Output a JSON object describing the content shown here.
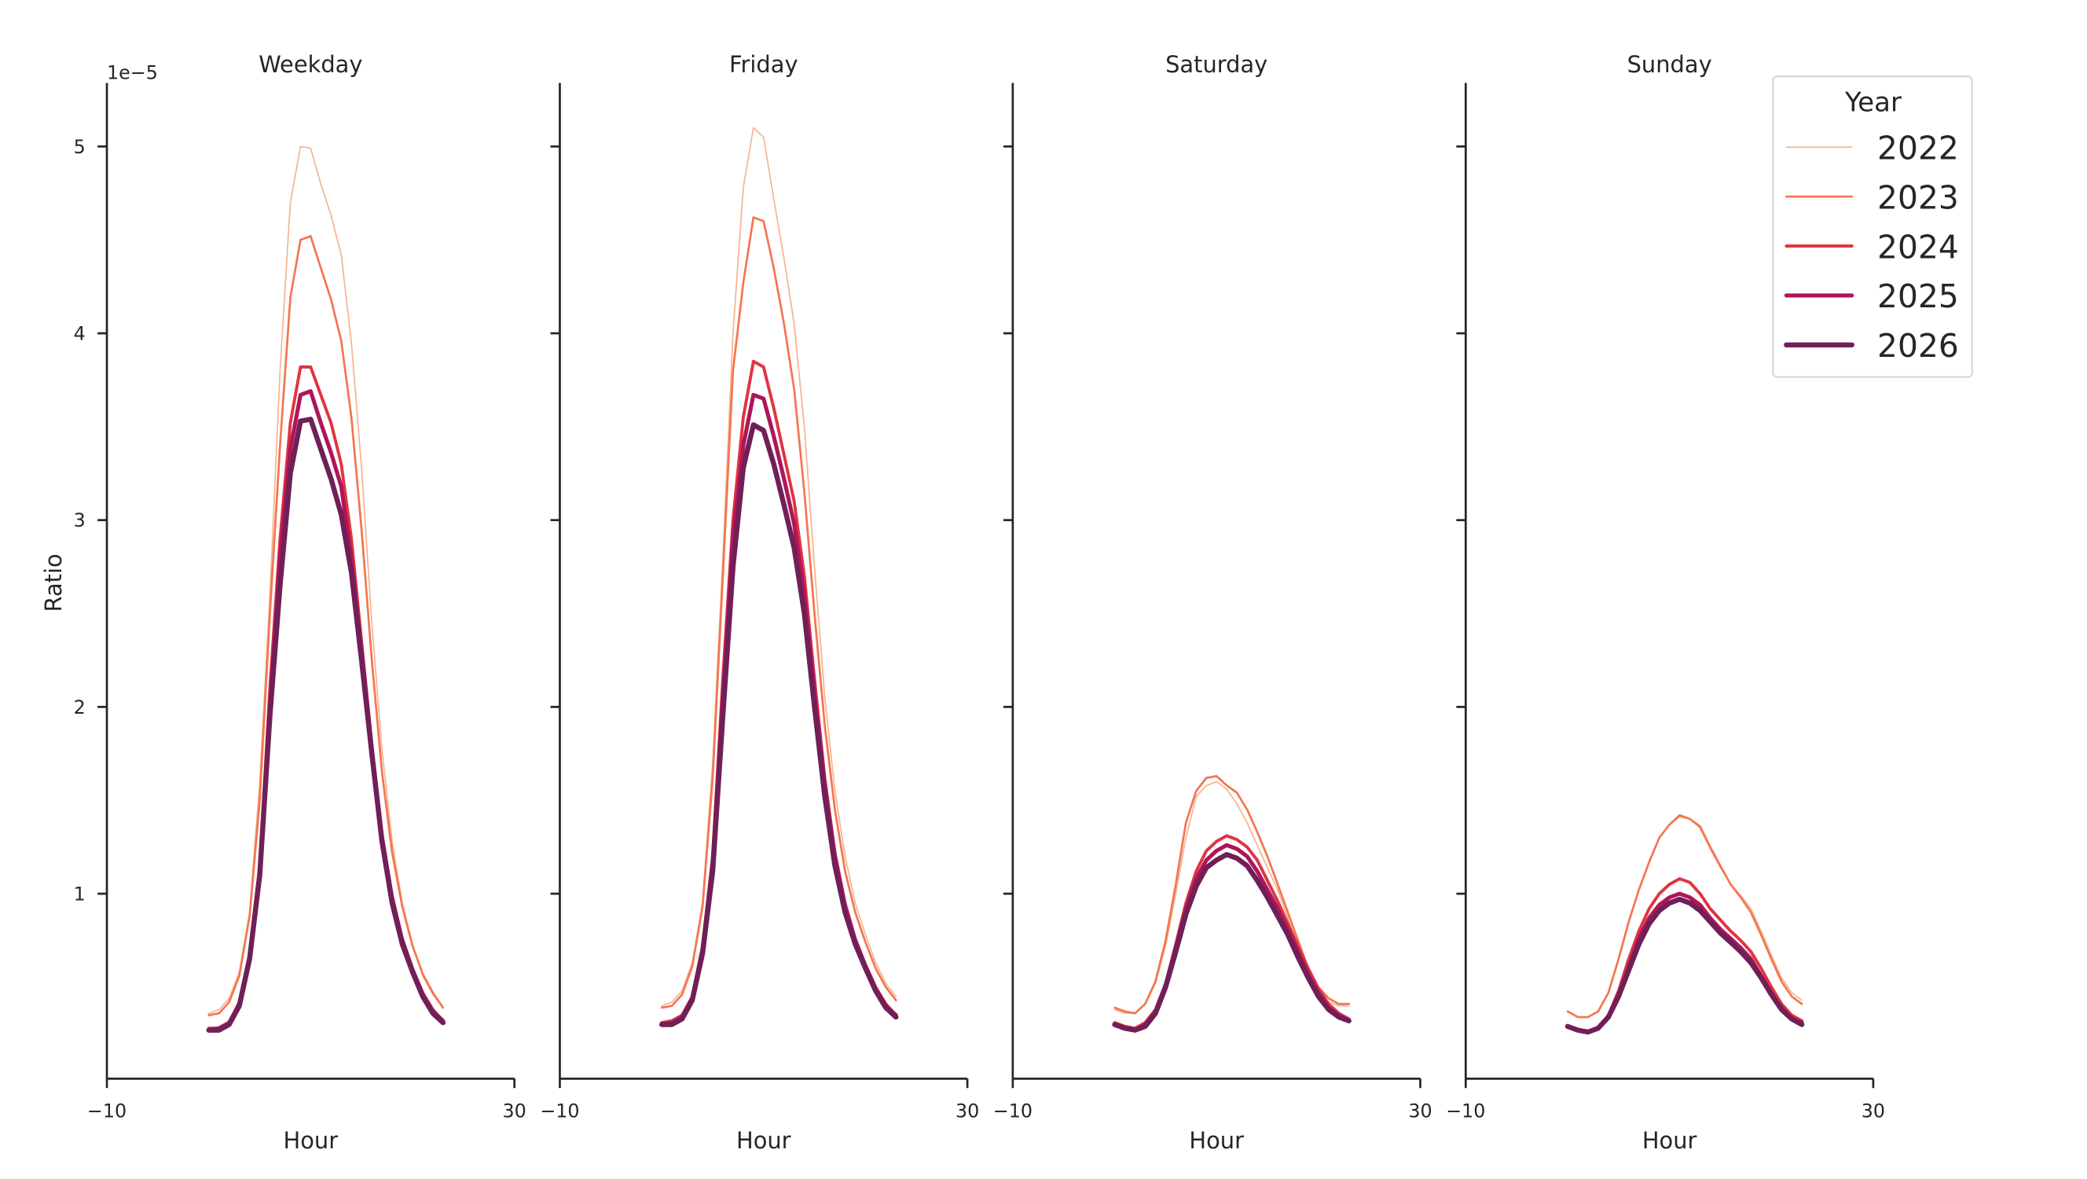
{
  "chart_data": [
    {
      "type": "line",
      "title": "Weekday",
      "xlabel": "Hour",
      "ylabel": "Ratio",
      "y_offset_text": "1e−5",
      "xlim": [
        -10,
        30
      ],
      "ylim": [
        0.01,
        5.34
      ],
      "x_ticks": [
        "−10",
        "30"
      ],
      "y_ticks": [
        "1",
        "2",
        "3",
        "4",
        "5"
      ],
      "x": [
        0,
        1,
        2,
        3,
        4,
        5,
        6,
        7,
        8,
        9,
        10,
        11,
        12,
        13,
        14,
        15,
        16,
        17,
        18,
        19,
        20,
        21,
        22,
        23
      ],
      "series": [
        {
          "name": "2022",
          "values": [
            0.36,
            0.38,
            0.44,
            0.58,
            0.9,
            1.6,
            2.6,
            3.8,
            4.7,
            5.0,
            4.99,
            4.8,
            4.63,
            4.42,
            3.95,
            3.28,
            2.45,
            1.77,
            1.28,
            0.95,
            0.73,
            0.56,
            0.46,
            0.39
          ]
        },
        {
          "name": "2023",
          "values": [
            0.35,
            0.36,
            0.42,
            0.56,
            0.88,
            1.5,
            2.5,
            3.4,
            4.19,
            4.5,
            4.52,
            4.35,
            4.18,
            3.96,
            3.55,
            2.95,
            2.25,
            1.65,
            1.22,
            0.93,
            0.72,
            0.57,
            0.47,
            0.39
          ]
        },
        {
          "name": "2024",
          "values": [
            0.28,
            0.28,
            0.31,
            0.42,
            0.68,
            1.15,
            2.1,
            2.9,
            3.52,
            3.82,
            3.82,
            3.67,
            3.52,
            3.3,
            2.9,
            2.35,
            1.8,
            1.32,
            0.99,
            0.76,
            0.6,
            0.47,
            0.38,
            0.32
          ]
        },
        {
          "name": "2025",
          "values": [
            0.27,
            0.28,
            0.31,
            0.41,
            0.66,
            1.12,
            2.0,
            2.8,
            3.38,
            3.67,
            3.69,
            3.52,
            3.36,
            3.18,
            2.8,
            2.3,
            1.77,
            1.3,
            0.97,
            0.75,
            0.59,
            0.46,
            0.37,
            0.32
          ]
        },
        {
          "name": "2026",
          "values": [
            0.27,
            0.27,
            0.3,
            0.4,
            0.65,
            1.1,
            1.95,
            2.65,
            3.25,
            3.53,
            3.54,
            3.38,
            3.22,
            3.03,
            2.72,
            2.25,
            1.75,
            1.28,
            0.95,
            0.73,
            0.58,
            0.45,
            0.36,
            0.31
          ]
        }
      ]
    },
    {
      "type": "line",
      "title": "Friday",
      "xlabel": "Hour",
      "xlim": [
        -10,
        30
      ],
      "ylim": [
        0.01,
        5.34
      ],
      "x_ticks": [
        "−10",
        "30"
      ],
      "x": [
        0,
        1,
        2,
        3,
        4,
        5,
        6,
        7,
        8,
        9,
        10,
        11,
        12,
        13,
        14,
        15,
        16,
        17,
        18,
        19,
        20,
        21,
        22,
        23
      ],
      "series": [
        {
          "name": "2022",
          "values": [
            0.4,
            0.42,
            0.48,
            0.63,
            0.95,
            1.7,
            2.8,
            4.0,
            4.78,
            5.1,
            5.05,
            4.72,
            4.4,
            4.05,
            3.5,
            2.75,
            2.05,
            1.55,
            1.2,
            0.95,
            0.78,
            0.63,
            0.52,
            0.45
          ]
        },
        {
          "name": "2023",
          "values": [
            0.39,
            0.4,
            0.46,
            0.61,
            0.93,
            1.62,
            2.7,
            3.8,
            4.27,
            4.62,
            4.6,
            4.35,
            4.05,
            3.7,
            3.15,
            2.5,
            1.9,
            1.45,
            1.12,
            0.9,
            0.74,
            0.6,
            0.5,
            0.43
          ]
        },
        {
          "name": "2024",
          "values": [
            0.31,
            0.32,
            0.35,
            0.45,
            0.72,
            1.2,
            2.15,
            3.0,
            3.55,
            3.85,
            3.82,
            3.6,
            3.35,
            3.1,
            2.7,
            2.15,
            1.62,
            1.22,
            0.95,
            0.76,
            0.62,
            0.5,
            0.41,
            0.35
          ]
        },
        {
          "name": "2025",
          "values": [
            0.3,
            0.31,
            0.34,
            0.44,
            0.7,
            1.17,
            2.05,
            2.9,
            3.4,
            3.67,
            3.65,
            3.45,
            3.22,
            2.98,
            2.6,
            2.08,
            1.58,
            1.2,
            0.93,
            0.75,
            0.61,
            0.49,
            0.4,
            0.35
          ]
        },
        {
          "name": "2026",
          "values": [
            0.3,
            0.3,
            0.33,
            0.43,
            0.68,
            1.12,
            1.95,
            2.75,
            3.28,
            3.51,
            3.48,
            3.3,
            3.08,
            2.85,
            2.5,
            2.0,
            1.52,
            1.15,
            0.9,
            0.73,
            0.6,
            0.48,
            0.39,
            0.34
          ]
        }
      ]
    },
    {
      "type": "line",
      "title": "Saturday",
      "xlabel": "Hour",
      "xlim": [
        -10,
        30
      ],
      "ylim": [
        0.01,
        5.34
      ],
      "x_ticks": [
        "−10",
        "30"
      ],
      "x": [
        0,
        1,
        2,
        3,
        4,
        5,
        6,
        7,
        8,
        9,
        10,
        11,
        12,
        13,
        14,
        15,
        16,
        17,
        18,
        19,
        20,
        21,
        22,
        23
      ],
      "series": [
        {
          "name": "2022",
          "values": [
            0.38,
            0.36,
            0.36,
            0.41,
            0.52,
            0.72,
            1.0,
            1.3,
            1.52,
            1.58,
            1.6,
            1.56,
            1.48,
            1.38,
            1.26,
            1.14,
            1.02,
            0.87,
            0.72,
            0.58,
            0.48,
            0.42,
            0.4,
            0.4
          ]
        },
        {
          "name": "2023",
          "values": [
            0.39,
            0.37,
            0.36,
            0.41,
            0.53,
            0.75,
            1.05,
            1.38,
            1.55,
            1.62,
            1.63,
            1.58,
            1.54,
            1.45,
            1.33,
            1.2,
            1.05,
            0.9,
            0.75,
            0.6,
            0.5,
            0.44,
            0.41,
            0.41
          ]
        },
        {
          "name": "2024",
          "values": [
            0.31,
            0.29,
            0.28,
            0.31,
            0.38,
            0.52,
            0.73,
            0.95,
            1.12,
            1.23,
            1.28,
            1.31,
            1.29,
            1.25,
            1.18,
            1.07,
            0.96,
            0.84,
            0.72,
            0.6,
            0.49,
            0.41,
            0.36,
            0.33
          ]
        },
        {
          "name": "2025",
          "values": [
            0.3,
            0.28,
            0.27,
            0.3,
            0.37,
            0.51,
            0.71,
            0.92,
            1.08,
            1.18,
            1.23,
            1.26,
            1.24,
            1.2,
            1.12,
            1.02,
            0.92,
            0.81,
            0.69,
            0.57,
            0.47,
            0.39,
            0.35,
            0.32
          ]
        },
        {
          "name": "2026",
          "values": [
            0.3,
            0.28,
            0.27,
            0.29,
            0.36,
            0.5,
            0.69,
            0.89,
            1.04,
            1.14,
            1.18,
            1.21,
            1.19,
            1.15,
            1.07,
            0.98,
            0.88,
            0.78,
            0.66,
            0.55,
            0.45,
            0.38,
            0.34,
            0.32
          ]
        }
      ]
    },
    {
      "type": "line",
      "title": "Sunday",
      "xlabel": "Hour",
      "xlim": [
        -10,
        30
      ],
      "ylim": [
        0.01,
        5.34
      ],
      "x_ticks": [
        "−10",
        "30"
      ],
      "x": [
        0,
        1,
        2,
        3,
        4,
        5,
        6,
        7,
        8,
        9,
        10,
        11,
        12,
        13,
        14,
        15,
        16,
        17,
        18,
        19,
        20,
        21,
        22,
        23
      ],
      "series": [
        {
          "name": "2022",
          "values": [
            0.37,
            0.34,
            0.34,
            0.37,
            0.47,
            0.65,
            0.85,
            1.02,
            1.17,
            1.3,
            1.37,
            1.41,
            1.4,
            1.35,
            1.24,
            1.14,
            1.05,
            0.99,
            0.92,
            0.8,
            0.67,
            0.55,
            0.47,
            0.43
          ]
        },
        {
          "name": "2023",
          "values": [
            0.37,
            0.34,
            0.34,
            0.37,
            0.47,
            0.65,
            0.85,
            1.02,
            1.17,
            1.3,
            1.37,
            1.42,
            1.4,
            1.36,
            1.25,
            1.15,
            1.05,
            0.98,
            0.9,
            0.78,
            0.65,
            0.53,
            0.45,
            0.41
          ]
        },
        {
          "name": "2024",
          "values": [
            0.29,
            0.27,
            0.26,
            0.28,
            0.35,
            0.48,
            0.65,
            0.8,
            0.92,
            1.0,
            1.05,
            1.08,
            1.06,
            1.0,
            0.92,
            0.86,
            0.8,
            0.75,
            0.69,
            0.6,
            0.5,
            0.41,
            0.35,
            0.32
          ]
        },
        {
          "name": "2025",
          "values": [
            0.29,
            0.27,
            0.26,
            0.28,
            0.34,
            0.46,
            0.61,
            0.76,
            0.87,
            0.94,
            0.98,
            1.0,
            0.98,
            0.94,
            0.87,
            0.81,
            0.76,
            0.71,
            0.65,
            0.56,
            0.47,
            0.39,
            0.33,
            0.31
          ]
        },
        {
          "name": "2026",
          "values": [
            0.29,
            0.27,
            0.26,
            0.28,
            0.34,
            0.45,
            0.59,
            0.73,
            0.84,
            0.91,
            0.95,
            0.97,
            0.95,
            0.91,
            0.85,
            0.79,
            0.74,
            0.69,
            0.63,
            0.55,
            0.46,
            0.38,
            0.33,
            0.3
          ]
        }
      ]
    }
  ],
  "legend": {
    "title": "Year",
    "placement": "top-right",
    "items": [
      {
        "label": "2022",
        "color": "#f6b48f"
      },
      {
        "label": "2023",
        "color": "#f37651"
      },
      {
        "label": "2024",
        "color": "#e13342"
      },
      {
        "label": "2025",
        "color": "#ad1759"
      },
      {
        "label": "2026",
        "color": "#701f57"
      }
    ]
  }
}
